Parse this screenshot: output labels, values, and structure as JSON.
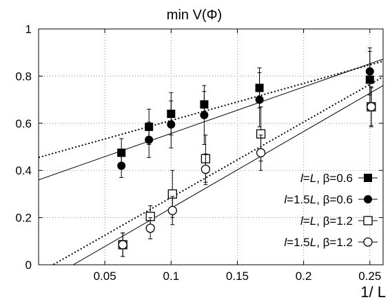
{
  "chart_data": {
    "type": "scatter",
    "title": "min V(Φ)",
    "xlabel": "1/ L",
    "ylabel": "",
    "xlim": [
      0,
      0.26
    ],
    "ylim": [
      0,
      1
    ],
    "xticks": [
      0.05,
      0.1,
      0.15,
      0.2,
      0.25
    ],
    "xtick_labels": [
      "0.05",
      "0.1",
      "0.15",
      "0.2",
      "0.25"
    ],
    "yticks": [
      0,
      0.2,
      0.4,
      0.6,
      0.8,
      1
    ],
    "ytick_labels": [
      "0",
      "0.2",
      "0.4",
      "0.6",
      "0.8",
      "1"
    ],
    "grid": true,
    "grid_style": "dotted",
    "legend_position": "bottom-right",
    "series": [
      {
        "name": "l=L, β=0.6",
        "legend_italic_l": "l",
        "legend_eq": "=",
        "legend_italic_L": "L",
        "legend_rest": ", β=0.6",
        "marker": "filled-square",
        "x": [
          0.0625,
          0.0833,
          0.1,
          0.125,
          0.1667,
          0.25
        ],
        "y": [
          0.475,
          0.585,
          0.64,
          0.68,
          0.75,
          0.785
        ],
        "err": [
          0.06,
          0.075,
          0.09,
          0.055,
          0.085,
          0.12
        ],
        "fit": {
          "style": "dotted",
          "intercept": 0.455,
          "slope": 1.57
        }
      },
      {
        "name": "l=1.5L, β=0.6",
        "legend_italic_l": "l",
        "legend_eq": "=1.5",
        "legend_italic_L": "L",
        "legend_rest": ", β=0.6",
        "marker": "filled-circle",
        "x": [
          0.0625,
          0.0833,
          0.1,
          0.125,
          0.1667,
          0.25
        ],
        "y": [
          0.42,
          0.53,
          0.595,
          0.635,
          0.7,
          0.82
        ],
        "err": [
          0.05,
          0.075,
          0.1,
          0.125,
          0.115,
          0.1
        ],
        "fit": {
          "style": "solid",
          "intercept": 0.36,
          "slope": 1.97
        }
      },
      {
        "name": "l=L, β=1.2",
        "legend_italic_l": "l",
        "legend_eq": "=",
        "legend_italic_L": "L",
        "legend_rest": ", β=1.2",
        "marker": "open-square",
        "x": [
          0.0625,
          0.0833,
          0.1,
          0.125,
          0.1667,
          0.25
        ],
        "y": [
          0.085,
          0.205,
          0.3,
          0.45,
          0.555,
          0.67
        ],
        "err": [
          0.05,
          0.045,
          0.1,
          0.1,
          0.115,
          0.085
        ],
        "fit": {
          "style": "dotted",
          "intercept": -0.035,
          "slope": 3.2
        }
      },
      {
        "name": "l=1.5L, β=1.2",
        "legend_italic_l": "l",
        "legend_eq": "=1.5",
        "legend_italic_L": "L",
        "legend_rest": ", β=1.2",
        "marker": "open-circle",
        "x": [
          0.0625,
          0.0833,
          0.1,
          0.125,
          0.1667,
          0.25
        ],
        "y": [
          0.085,
          0.155,
          0.23,
          0.405,
          0.475,
          0.67
        ],
        "err": [
          0.05,
          0.045,
          0.06,
          0.065,
          0.075,
          0.08
        ],
        "fit": {
          "style": "solid",
          "intercept": -0.085,
          "slope": 3.25
        }
      }
    ]
  }
}
